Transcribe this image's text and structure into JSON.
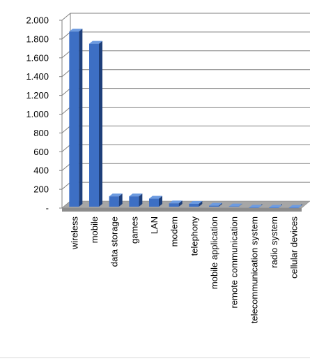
{
  "chart_data": {
    "type": "bar",
    "categories": [
      "wireless",
      "mobile",
      "data storage",
      "games",
      "LAN",
      "modem",
      "telephony",
      "mobile application",
      "remote communication",
      "telecommunication system",
      "radio system",
      "cellular devices"
    ],
    "values": [
      1880,
      1750,
      125,
      125,
      100,
      50,
      45,
      25,
      18,
      5,
      4,
      3
    ],
    "ylim": [
      0,
      2000
    ],
    "yticks": [
      0,
      200,
      400,
      600,
      800,
      1000,
      1200,
      1400,
      1600,
      1800,
      2000
    ],
    "ytick_labels": [
      "-",
      "200",
      "400",
      "600",
      "800",
      "1.000",
      "1.200",
      "1.400",
      "1.600",
      "1.800",
      "2.000"
    ],
    "title": "",
    "xlabel": "",
    "ylabel": "",
    "grid": true,
    "legend": "none",
    "colors": {
      "bar_front": "#3d6fc4",
      "bar_side": "#1e3f7a",
      "bar_top": "#6d9be0",
      "grid": "#7f7f7f",
      "floor": "#a6a6a6",
      "wall": "#ffffff"
    }
  }
}
